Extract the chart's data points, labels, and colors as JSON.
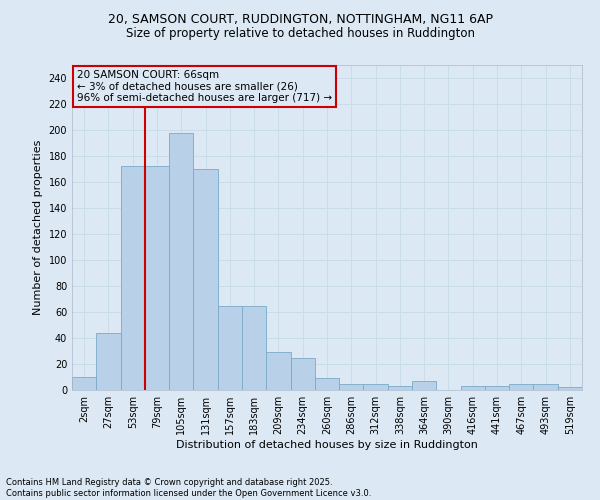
{
  "title_line1": "20, SAMSON COURT, RUDDINGTON, NOTTINGHAM, NG11 6AP",
  "title_line2": "Size of property relative to detached houses in Ruddington",
  "categories": [
    "2sqm",
    "27sqm",
    "53sqm",
    "79sqm",
    "105sqm",
    "131sqm",
    "157sqm",
    "183sqm",
    "209sqm",
    "234sqm",
    "260sqm",
    "286sqm",
    "312sqm",
    "338sqm",
    "364sqm",
    "390sqm",
    "416sqm",
    "441sqm",
    "467sqm",
    "493sqm",
    "519sqm"
  ],
  "values": [
    10,
    44,
    172,
    172,
    198,
    170,
    65,
    65,
    29,
    25,
    9,
    5,
    5,
    3,
    7,
    0,
    3,
    3,
    5,
    5,
    2
  ],
  "bar_color": "#b8d0e8",
  "bar_edge_color": "#7aaac8",
  "grid_color": "#c8dcea",
  "background_color": "#dce9f5",
  "ylabel": "Number of detached properties",
  "xlabel": "Distribution of detached houses by size in Ruddington",
  "ylim": [
    0,
    250
  ],
  "yticks": [
    0,
    20,
    40,
    60,
    80,
    100,
    120,
    140,
    160,
    180,
    200,
    220,
    240
  ],
  "annotation_title": "20 SAMSON COURT: 66sqm",
  "annotation_line1": "← 3% of detached houses are smaller (26)",
  "annotation_line2": "96% of semi-detached houses are larger (717) →",
  "footer_line1": "Contains HM Land Registry data © Crown copyright and database right 2025.",
  "footer_line2": "Contains public sector information licensed under the Open Government Licence v3.0.",
  "annotation_box_color": "#cc0000",
  "property_line_color": "#cc0000",
  "title_fontsize": 9,
  "subtitle_fontsize": 8.5,
  "ylabel_fontsize": 8,
  "xlabel_fontsize": 8,
  "tick_fontsize": 7,
  "footer_fontsize": 6,
  "annotation_fontsize": 7.5
}
